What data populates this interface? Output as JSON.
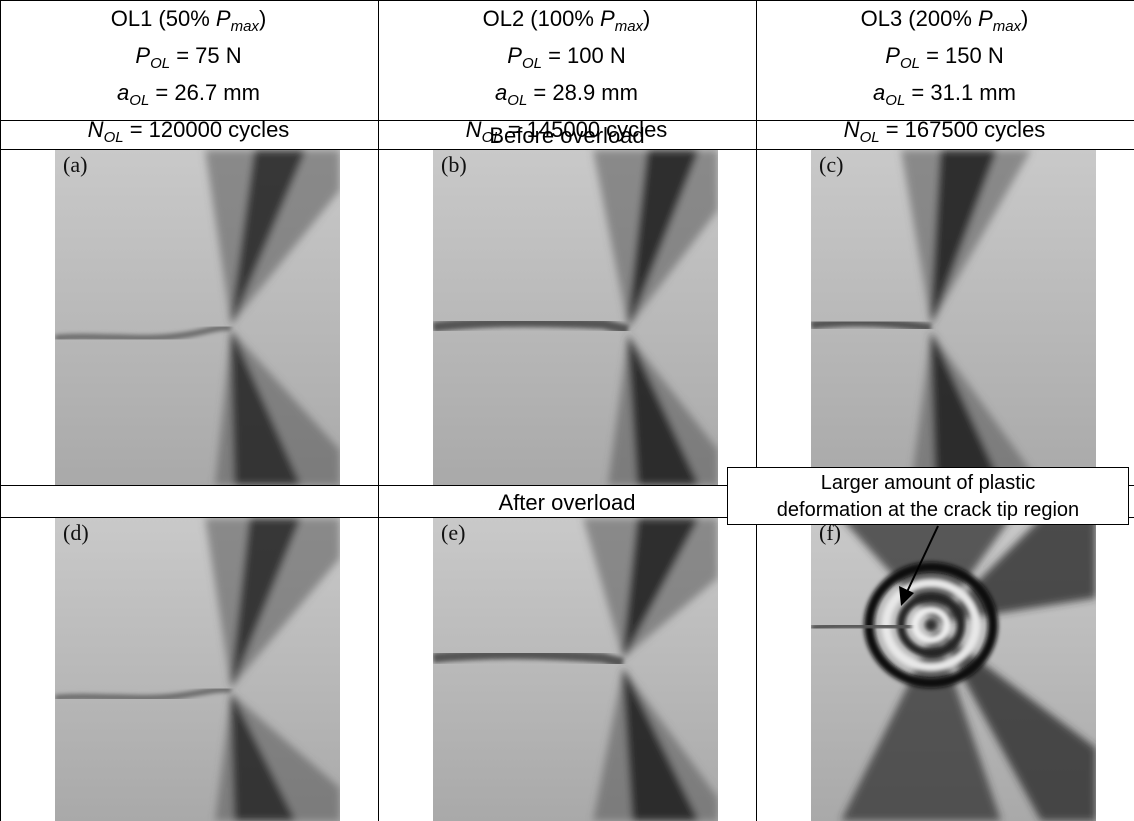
{
  "columns": [
    {
      "title": "OL1 (50% ",
      "title_p": "P",
      "title_sub": "max",
      "title_end": ")",
      "p_value": " = 75 N",
      "a_value": " = 26.7 mm",
      "n_value": " = 120000 cycles"
    },
    {
      "title": "OL2 (100% ",
      "title_p": "P",
      "title_sub": "max",
      "title_end": ")",
      "p_value": " = 100 N",
      "a_value": " = 28.9 mm",
      "n_value": " = 145000 cycles"
    },
    {
      "title": "OL3 (200% ",
      "title_p": "P",
      "title_sub": "max",
      "title_end": ")",
      "p_value": " = 150 N",
      "a_value": " = 31.1 mm",
      "n_value": " = 167500 cycles"
    }
  ],
  "symbols": {
    "P": "P",
    "a": "a",
    "N": "N",
    "ol_sub": "OL"
  },
  "rows": {
    "before_label": "Before overload",
    "after_label": "After overload"
  },
  "panel_labels": [
    "(a)",
    "(b)",
    "(c)",
    "(d)",
    "(e)",
    "(f)"
  ],
  "annotation": {
    "line1": "Larger amount of plastic",
    "line2": "deformation at the crack tip region"
  }
}
